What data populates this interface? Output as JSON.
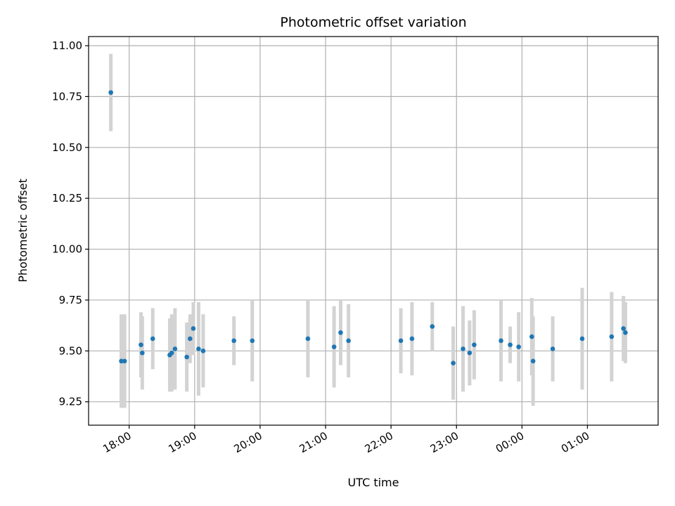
{
  "chart_data": {
    "type": "scatter",
    "title": "Photometric offset variation",
    "xlabel": "UTC time",
    "ylabel": "Photometric offset",
    "grid": true,
    "marker_color": "#1f77b4",
    "errorbar_color": "#d3d3d3",
    "x_unit": "hours since 00:00 UTC",
    "x_ticks": [
      18,
      19,
      20,
      21,
      22,
      23,
      24,
      25
    ],
    "x_tick_labels": [
      "18:00",
      "19:00",
      "20:00",
      "21:00",
      "22:00",
      "23:00",
      "00:00",
      "01:00"
    ],
    "xlim": [
      17.38,
      26.08
    ],
    "ylim": [
      9.135,
      11.045
    ],
    "y_ticks": [
      9.25,
      9.5,
      9.75,
      10.0,
      10.25,
      10.5,
      10.75,
      11.0
    ],
    "y_tick_labels": [
      "9.25",
      "9.50",
      "9.75",
      "10.00",
      "10.25",
      "10.50",
      "10.75",
      "11.00"
    ],
    "points": [
      {
        "x": 17.72,
        "y": 10.77,
        "err": 0.19
      },
      {
        "x": 17.88,
        "y": 9.45,
        "err": 0.23
      },
      {
        "x": 17.93,
        "y": 9.45,
        "err": 0.23
      },
      {
        "x": 18.18,
        "y": 9.53,
        "err": 0.16
      },
      {
        "x": 18.2,
        "y": 9.49,
        "err": 0.18
      },
      {
        "x": 18.36,
        "y": 9.56,
        "err": 0.15
      },
      {
        "x": 18.62,
        "y": 9.48,
        "err": 0.18
      },
      {
        "x": 18.65,
        "y": 9.49,
        "err": 0.19
      },
      {
        "x": 18.7,
        "y": 9.51,
        "err": 0.2
      },
      {
        "x": 18.88,
        "y": 9.47,
        "err": 0.17
      },
      {
        "x": 18.93,
        "y": 9.56,
        "err": 0.12
      },
      {
        "x": 18.98,
        "y": 9.61,
        "err": 0.13
      },
      {
        "x": 19.06,
        "y": 9.51,
        "err": 0.23
      },
      {
        "x": 19.13,
        "y": 9.5,
        "err": 0.18
      },
      {
        "x": 19.6,
        "y": 9.55,
        "err": 0.12
      },
      {
        "x": 19.88,
        "y": 9.55,
        "err": 0.2
      },
      {
        "x": 20.73,
        "y": 9.56,
        "err": 0.19
      },
      {
        "x": 21.13,
        "y": 9.52,
        "err": 0.2
      },
      {
        "x": 21.23,
        "y": 9.59,
        "err": 0.16
      },
      {
        "x": 21.35,
        "y": 9.55,
        "err": 0.18
      },
      {
        "x": 22.15,
        "y": 9.55,
        "err": 0.16
      },
      {
        "x": 22.32,
        "y": 9.56,
        "err": 0.18
      },
      {
        "x": 22.63,
        "y": 9.62,
        "err": 0.12
      },
      {
        "x": 22.95,
        "y": 9.44,
        "err": 0.18
      },
      {
        "x": 23.1,
        "y": 9.51,
        "err": 0.21
      },
      {
        "x": 23.2,
        "y": 9.49,
        "err": 0.16
      },
      {
        "x": 23.27,
        "y": 9.53,
        "err": 0.17
      },
      {
        "x": 23.68,
        "y": 9.55,
        "err": 0.2
      },
      {
        "x": 23.82,
        "y": 9.53,
        "err": 0.09
      },
      {
        "x": 23.95,
        "y": 9.52,
        "err": 0.17
      },
      {
        "x": 24.15,
        "y": 9.57,
        "err": 0.19
      },
      {
        "x": 24.17,
        "y": 9.45,
        "err": 0.22
      },
      {
        "x": 24.47,
        "y": 9.51,
        "err": 0.16
      },
      {
        "x": 24.92,
        "y": 9.56,
        "err": 0.25
      },
      {
        "x": 25.37,
        "y": 9.57,
        "err": 0.22
      },
      {
        "x": 25.55,
        "y": 9.61,
        "err": 0.16
      },
      {
        "x": 25.58,
        "y": 9.59,
        "err": 0.15
      }
    ]
  }
}
